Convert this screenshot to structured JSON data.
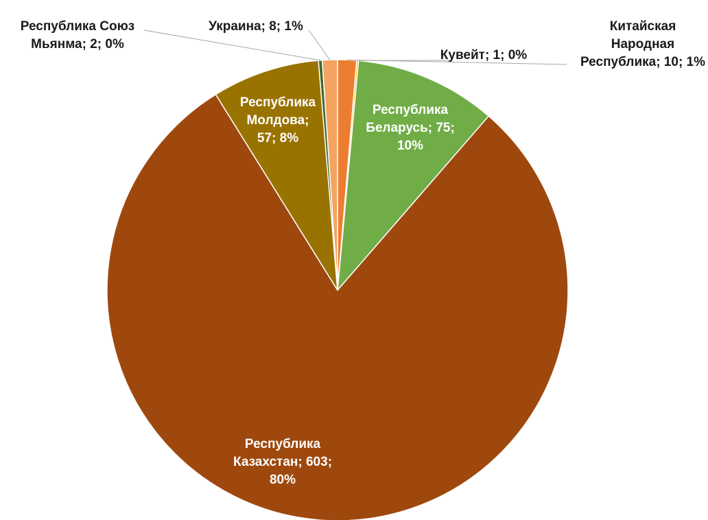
{
  "chart_data": {
    "type": "pie",
    "title": "",
    "start_angle_deg": 0,
    "direction": "clockwise",
    "slices": [
      {
        "name": "Китайская Народная Республика",
        "value": 10,
        "percent": "1%",
        "color": "#ED7D31",
        "label_lines": [
          "Китайская",
          "Народная",
          "Республика; 10; 1%"
        ],
        "label_placement": "outside",
        "leader": true
      },
      {
        "name": "Кувейт",
        "value": 1,
        "percent": "0%",
        "color": "#FFC000",
        "label_lines": [
          "Кувейт; 1; 0%"
        ],
        "label_placement": "outside",
        "leader": true
      },
      {
        "name": "Республика Беларусь",
        "value": 75,
        "percent": "10%",
        "color": "#70AD47",
        "label_lines": [
          "Республика",
          "Беларусь; 75;",
          "10%"
        ],
        "label_placement": "inside",
        "leader": false
      },
      {
        "name": "Республика Казахстан",
        "value": 603,
        "percent": "80%",
        "color": "#9E480E",
        "label_lines": [
          "Республика",
          "Казахстан; 603;",
          "80%"
        ],
        "label_placement": "inside",
        "leader": false
      },
      {
        "name": "Республика Молдова",
        "value": 57,
        "percent": "8%",
        "color": "#997300",
        "label_lines": [
          "Республика",
          "Молдова;",
          "57; 8%"
        ],
        "label_placement": "inside",
        "leader": false
      },
      {
        "name": "Республика Союз Мьянма",
        "value": 2,
        "percent": "0%",
        "color": "#43682B",
        "label_lines": [
          "Республика Союз",
          "Мьянма; 2; 0%"
        ],
        "label_placement": "outside",
        "leader": true
      },
      {
        "name": "Украина",
        "value": 8,
        "percent": "1%",
        "color": "#F4A460",
        "label_lines": [
          "Украина; 8; 1%"
        ],
        "label_placement": "outside",
        "leader": true
      }
    ]
  }
}
